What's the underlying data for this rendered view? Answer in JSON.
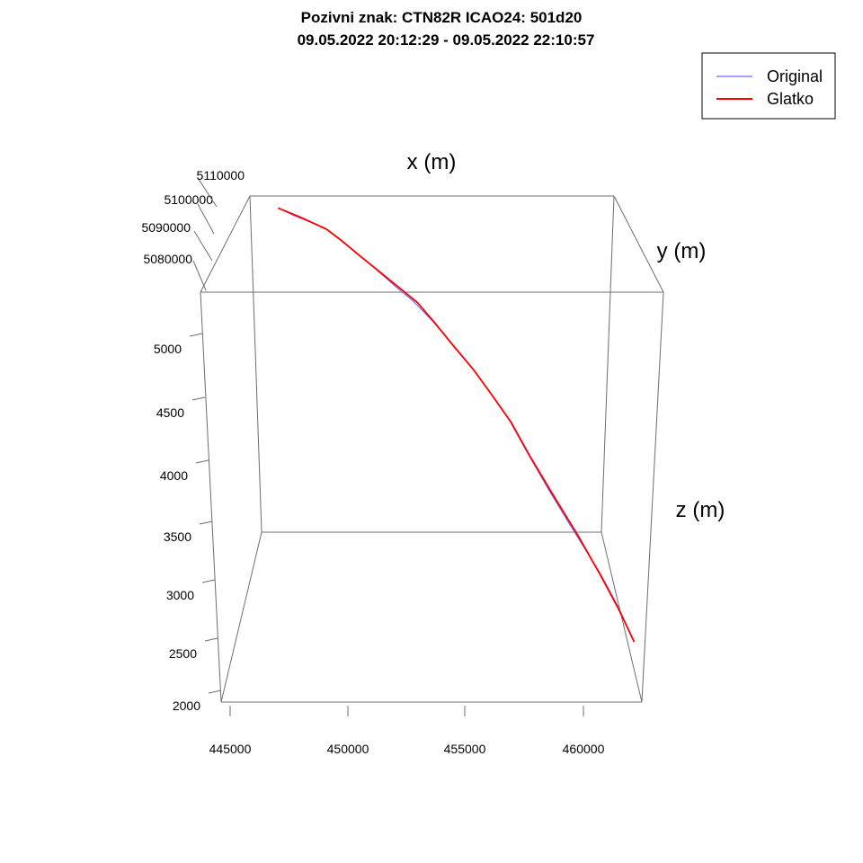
{
  "chart_data": {
    "type": "line",
    "title_line1": "Pozivni znak: CTN82R    ICAO24: 501d20",
    "title_line2": "09.05.2022 20:12:29 - 09.05.2022 22:10:57",
    "xlabel": "x (m)",
    "ylabel": "y (m)",
    "zlabel": "z (m)",
    "x_ticks": [
      "445000",
      "450000",
      "455000",
      "460000"
    ],
    "y_ticks": [
      "5080000",
      "5090000",
      "5100000",
      "5110000"
    ],
    "z_ticks": [
      "2000",
      "2500",
      "3000",
      "3500",
      "4000",
      "4500",
      "5000"
    ],
    "legend": {
      "position": "top-right",
      "entries": [
        {
          "label": "Original",
          "color": "#6b6bff"
        },
        {
          "label": "Glatko",
          "color": "#ff0000"
        }
      ]
    },
    "series": [
      {
        "name": "Original",
        "color": "#6b6bff",
        "points": [
          [
            446200,
            5094500,
            5180
          ],
          [
            447000,
            5093000,
            5130
          ],
          [
            448500,
            5091500,
            5050
          ],
          [
            449200,
            5090000,
            4980
          ],
          [
            450000,
            5088500,
            4890
          ],
          [
            451000,
            5087000,
            4780
          ],
          [
            452000,
            5085800,
            4660
          ],
          [
            452800,
            5085000,
            4570
          ],
          [
            453700,
            5084000,
            4440
          ],
          [
            454500,
            5083000,
            4310
          ],
          [
            455500,
            5082000,
            4140
          ],
          [
            456300,
            5081000,
            3980
          ],
          [
            457200,
            5080000,
            3790
          ],
          [
            458000,
            5079000,
            3570
          ],
          [
            459000,
            5078000,
            3300
          ],
          [
            460000,
            5077200,
            3040
          ],
          [
            461000,
            5076500,
            2780
          ],
          [
            461700,
            5076000,
            2560
          ],
          [
            462300,
            5075600,
            2330
          ]
        ]
      },
      {
        "name": "Glatko",
        "color": "#ff0000",
        "points": [
          [
            446200,
            5094500,
            5180
          ],
          [
            447300,
            5093000,
            5120
          ],
          [
            448600,
            5091500,
            5040
          ],
          [
            449300,
            5090000,
            4970
          ],
          [
            450200,
            5088500,
            4870
          ],
          [
            451200,
            5087000,
            4760
          ],
          [
            452200,
            5085800,
            4650
          ],
          [
            453000,
            5085000,
            4560
          ],
          [
            453800,
            5084000,
            4430
          ],
          [
            454600,
            5083000,
            4290
          ],
          [
            455600,
            5082000,
            4120
          ],
          [
            456400,
            5081000,
            3960
          ],
          [
            457300,
            5080000,
            3770
          ],
          [
            458100,
            5079000,
            3550
          ],
          [
            459100,
            5078000,
            3290
          ],
          [
            460100,
            5077200,
            3030
          ],
          [
            461000,
            5076500,
            2770
          ],
          [
            461700,
            5076000,
            2550
          ],
          [
            462300,
            5075600,
            2330
          ]
        ]
      }
    ]
  }
}
